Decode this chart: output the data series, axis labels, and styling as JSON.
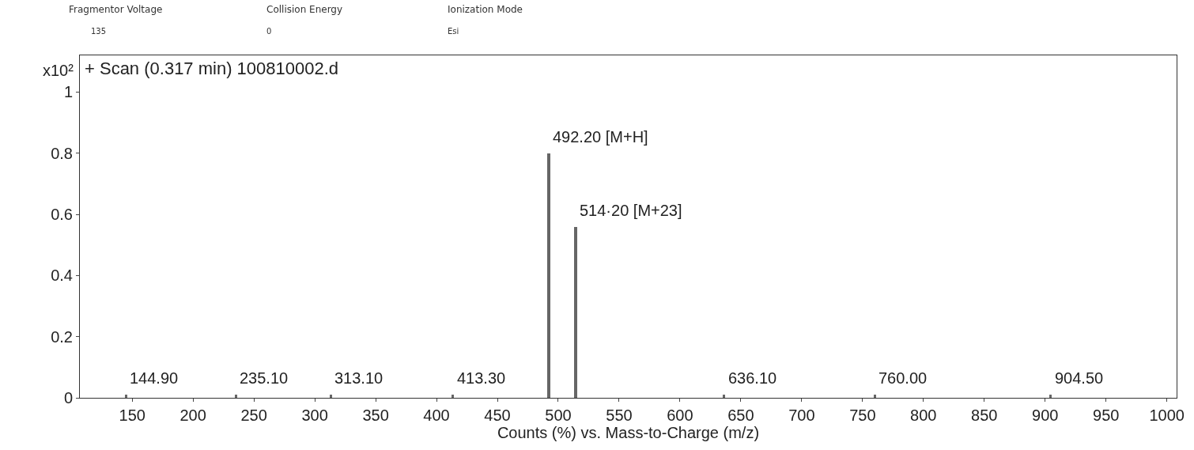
{
  "chart_data": {
    "type": "bar",
    "title": "+ Scan (0.317 min) 100810002.d",
    "xlabel": "Counts (%) vs. Mass-to-Charge (m/z)",
    "ylabel": "x10²",
    "annotations": [
      "Fragmentor Voltage",
      "135",
      "Collision Energy",
      "0",
      "Ionization Mode",
      "Esi",
      {
        "text": "144.90",
        "x": 144.9,
        "y": 0.01
      },
      {
        "text": "235.10",
        "x": 235.1,
        "y": 0.01
      },
      {
        "text": "313.10",
        "x": 313.1,
        "y": 0.01
      },
      {
        "text": "413.30",
        "x": 413.3,
        "y": 0.01
      },
      {
        "text": "492.20 [M+H]",
        "x": 492.2,
        "y": 0.8
      },
      {
        "text": "514·20 [M+23]",
        "x": 514.2,
        "y": 0.56
      },
      {
        "text": "636.10",
        "x": 636.1,
        "y": 0.01
      },
      {
        "text": "760.00",
        "x": 760.0,
        "y": 0.01
      },
      {
        "text": "904.50",
        "x": 904.5,
        "y": 0.01
      }
    ],
    "x": [
      144.9,
      235.1,
      313.1,
      413.3,
      492.2,
      514.2,
      636.1,
      760.0,
      904.5
    ],
    "values": [
      0.01,
      0.01,
      0.01,
      0.01,
      0.8,
      0.56,
      0.01,
      0.01,
      0.01
    ],
    "color": "#666666",
    "xlim": [
      107,
      1008
    ],
    "xticks": [
      150,
      200,
      250,
      300,
      350,
      400,
      450,
      500,
      550,
      600,
      650,
      700,
      750,
      800,
      850,
      900,
      950,
      1000
    ],
    "ylim": [
      0,
      1.12
    ],
    "yticks": [
      0,
      0.2,
      0.4,
      0.6,
      0.8,
      1
    ],
    "legend": false
  }
}
